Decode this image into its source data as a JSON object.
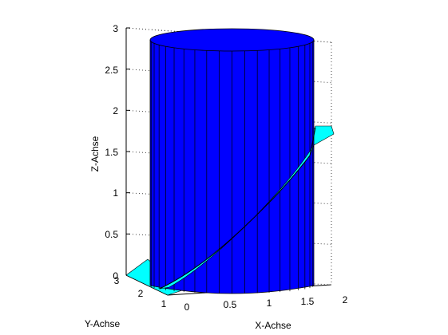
{
  "chart_data": {
    "type": "surface3d",
    "xlabel": "X-Achse",
    "ylabel": "Y-Achse",
    "zlabel": "Z-Achse",
    "xlim": [
      0,
      2
    ],
    "ylim": [
      0,
      3
    ],
    "zlim": [
      0,
      3
    ],
    "xticks": [
      "0",
      "0.5",
      "1",
      "1.5",
      "2"
    ],
    "yticks": [
      "1",
      "2",
      "3"
    ],
    "zticks": [
      "0",
      "0.5",
      "1",
      "1.5",
      "2",
      "2.5",
      "3"
    ],
    "cylinder": {
      "center_x": 1,
      "center_y": 2,
      "radius": 1,
      "z_range": [
        0,
        3
      ],
      "color": "#0000ff"
    },
    "plane": {
      "equation": "z = x",
      "color": "#00ffff"
    },
    "intersection_curve_color": "#000000",
    "grid": "box-outline"
  }
}
